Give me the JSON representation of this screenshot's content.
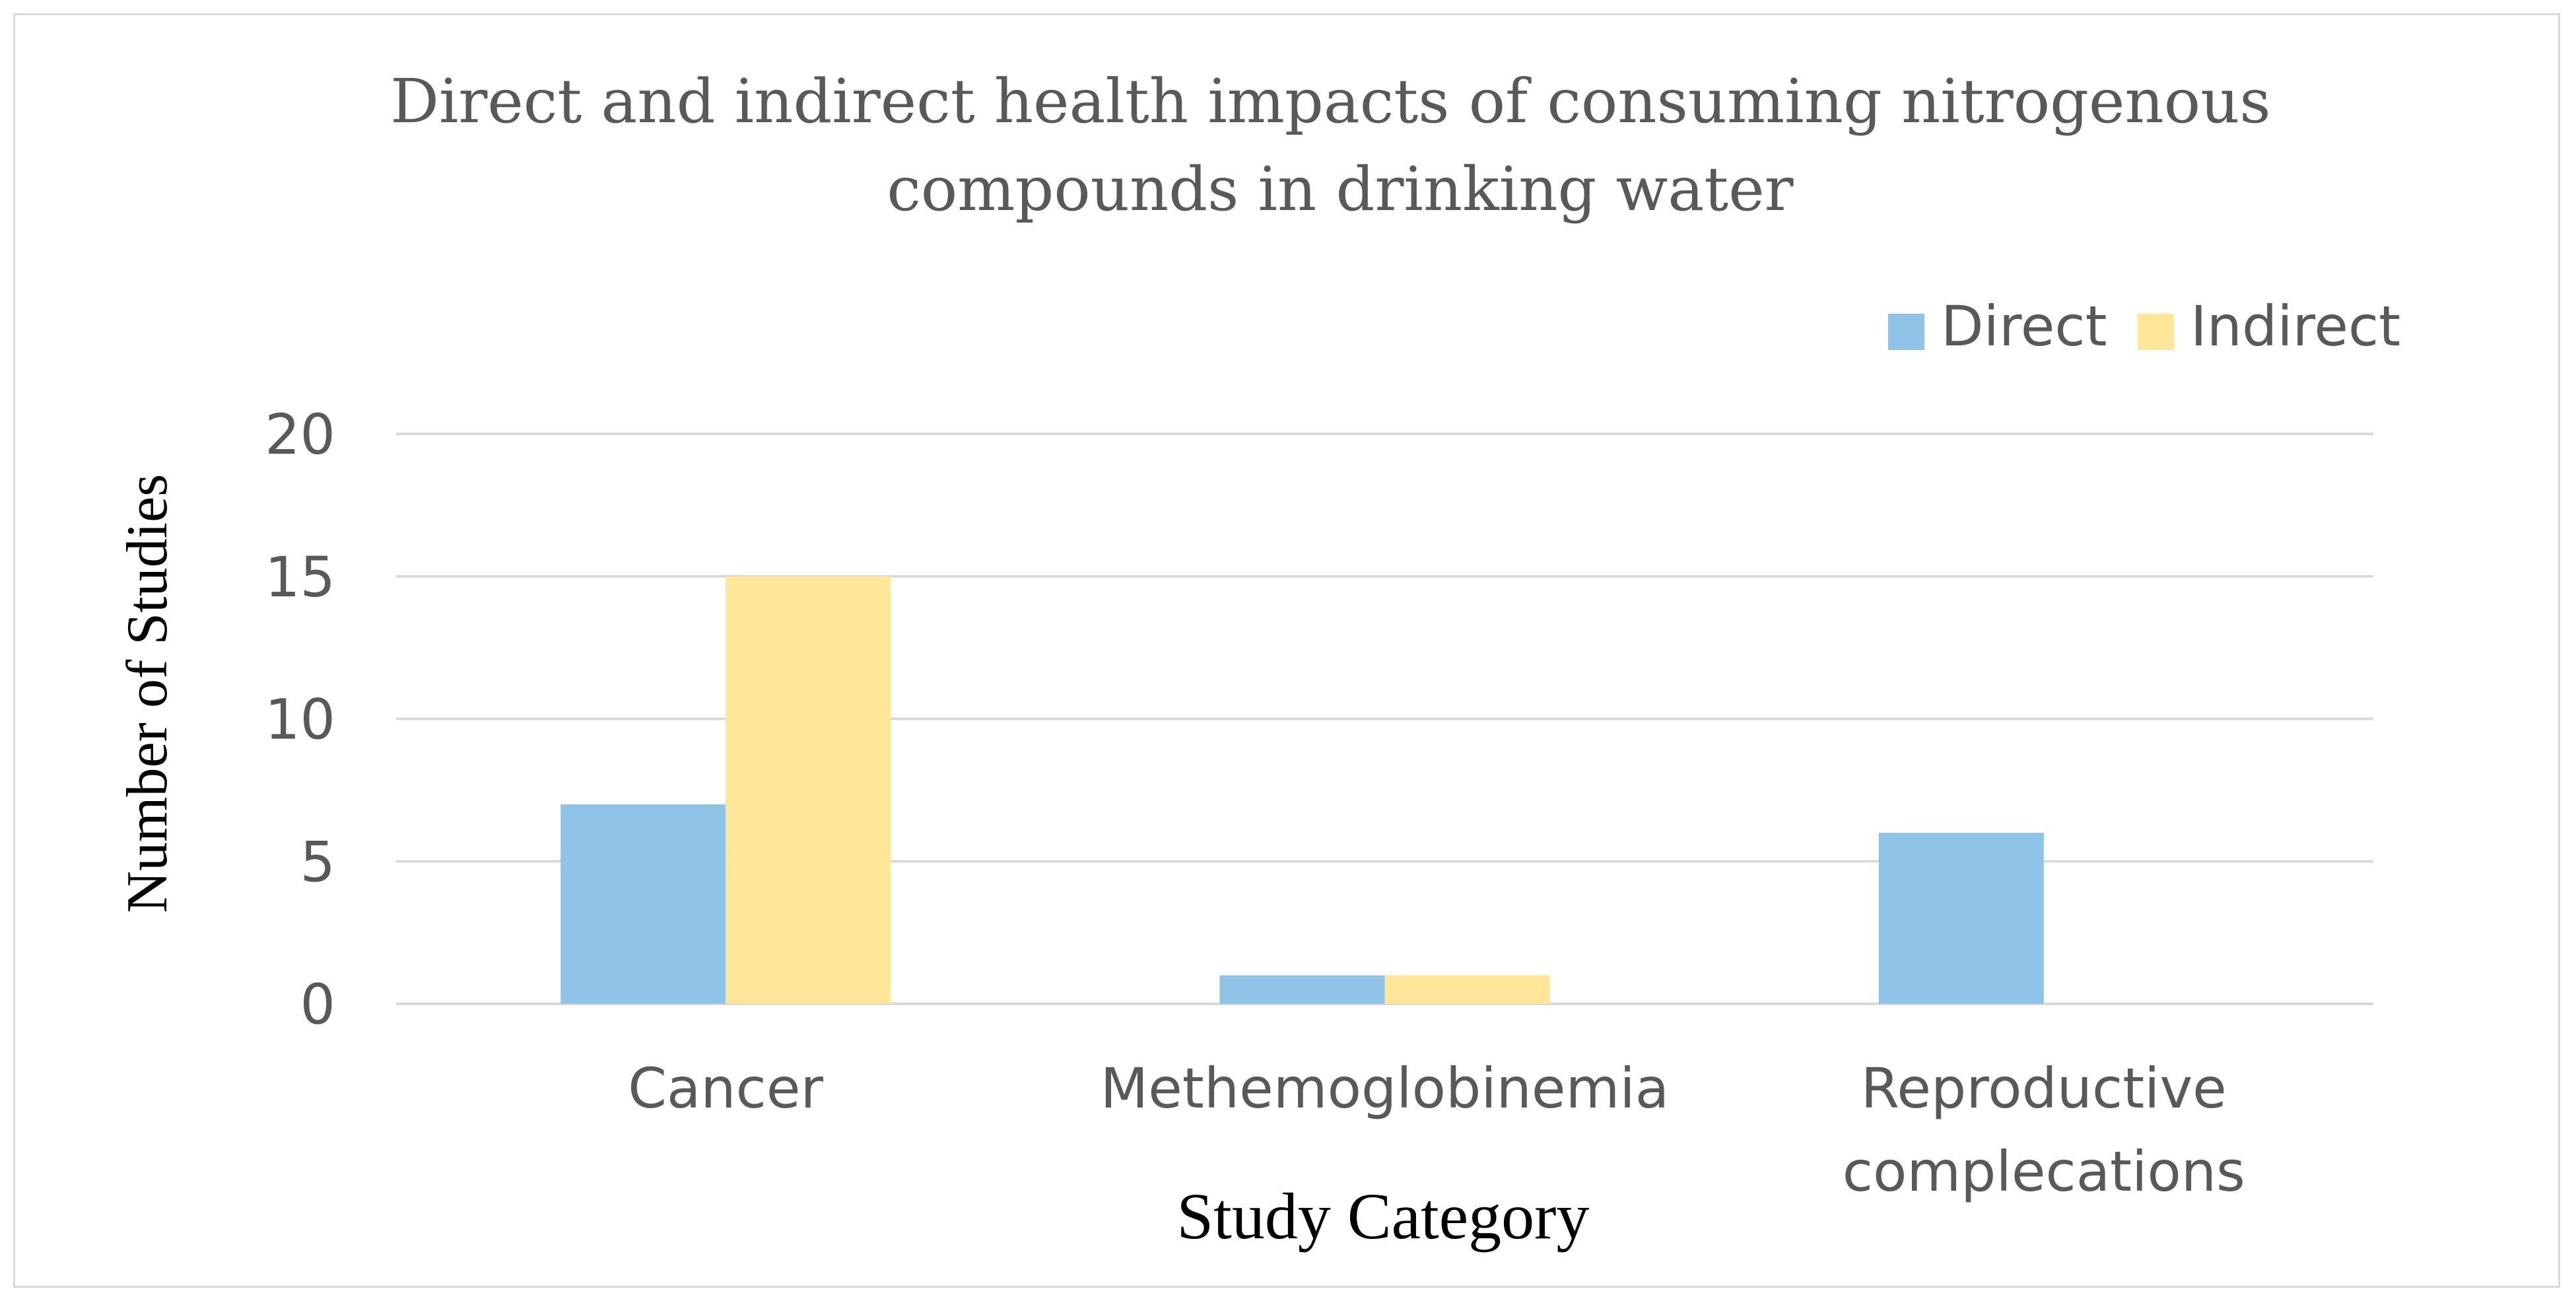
{
  "chart_data": {
    "type": "bar",
    "title": "Direct and indirect health impacts of consuming nitrogenous compounds in drinking water",
    "title_lines": [
      "Direct and indirect health impacts of consuming nitrogenous",
      "compounds in drinking water"
    ],
    "xlabel": "Study Category",
    "ylabel": "Number of Studies",
    "categories": [
      "Cancer",
      "Methemoglobinemia",
      "Reproductive complecations"
    ],
    "category_lines": [
      [
        "Cancer"
      ],
      [
        "Methemoglobinemia"
      ],
      [
        "Reproductive",
        "complecations"
      ]
    ],
    "series": [
      {
        "name": "Direct",
        "values": [
          7,
          1,
          6
        ],
        "color": "#8FC4E8"
      },
      {
        "name": "Indirect",
        "values": [
          15,
          1,
          0
        ],
        "color": "#FFE699"
      }
    ],
    "ylim": [
      0,
      20
    ],
    "yticks": [
      0,
      5,
      10,
      15,
      20
    ],
    "grid": true,
    "legend_position": "top-right"
  },
  "colors": {
    "gridline": "#d9d9d9",
    "text": "#595959",
    "frame": "#d9d9d9"
  }
}
